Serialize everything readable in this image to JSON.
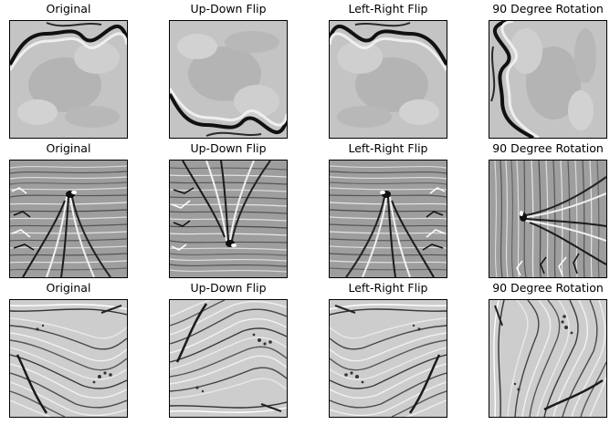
{
  "figure": {
    "rows": [
      {
        "panels": [
          {
            "title": "Original"
          },
          {
            "title": "Up-Down Flip"
          },
          {
            "title": "Left-Right Flip"
          },
          {
            "title": "90 Degree Rotation"
          }
        ]
      },
      {
        "panels": [
          {
            "title": "Original"
          },
          {
            "title": "Up-Down Flip"
          },
          {
            "title": "Left-Right Flip"
          },
          {
            "title": "90 Degree Rotation"
          }
        ]
      },
      {
        "panels": [
          {
            "title": "Original"
          },
          {
            "title": "Up-Down Flip"
          },
          {
            "title": "Left-Right Flip"
          },
          {
            "title": "90 Degree Rotation"
          }
        ]
      }
    ]
  }
}
